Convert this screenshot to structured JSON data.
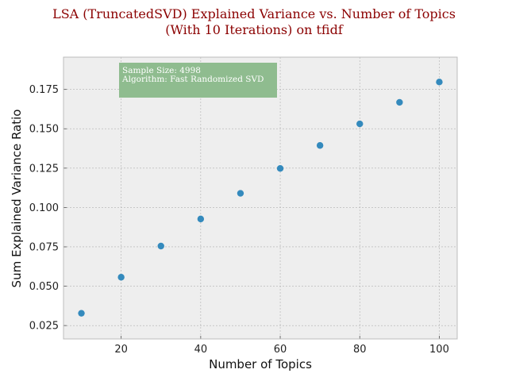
{
  "chart_data": {
    "type": "scatter",
    "title": [
      "LSA (TruncatedSVD) Explained Variance vs. Number of Topics",
      "(With 10 Iterations) on tfidf"
    ],
    "xlabel": "Number of Topics",
    "ylabel": "Sum Explained Variance Ratio",
    "xlim": [
      5.5,
      104.5
    ],
    "ylim": [
      0.0165,
      0.1955
    ],
    "xticks": [
      20,
      40,
      60,
      80,
      100
    ],
    "yticks": [
      0.025,
      0.05,
      0.075,
      0.1,
      0.125,
      0.15,
      0.175
    ],
    "ytick_labels": [
      "0.025",
      "0.050",
      "0.075",
      "0.100",
      "0.125",
      "0.150",
      "0.175"
    ],
    "grid": true,
    "series": [
      {
        "color": "#348abd",
        "x": [
          10,
          20,
          30,
          40,
          50,
          60,
          70,
          80,
          90,
          100
        ],
        "y": [
          0.0328,
          0.0557,
          0.0755,
          0.0927,
          0.109,
          0.1248,
          0.1394,
          0.1531,
          0.1668,
          0.1797
        ]
      }
    ],
    "annotation": {
      "lines": [
        "Sample Size: 4998",
        "Algorithm: Fast Randomized SVD"
      ],
      "box_color": "#8fbc8f"
    },
    "colors": {
      "plot_background": "#eeeeee",
      "grid": "#b0b0b0",
      "spine": "#bcbcbc",
      "title": "#8b0000"
    }
  }
}
